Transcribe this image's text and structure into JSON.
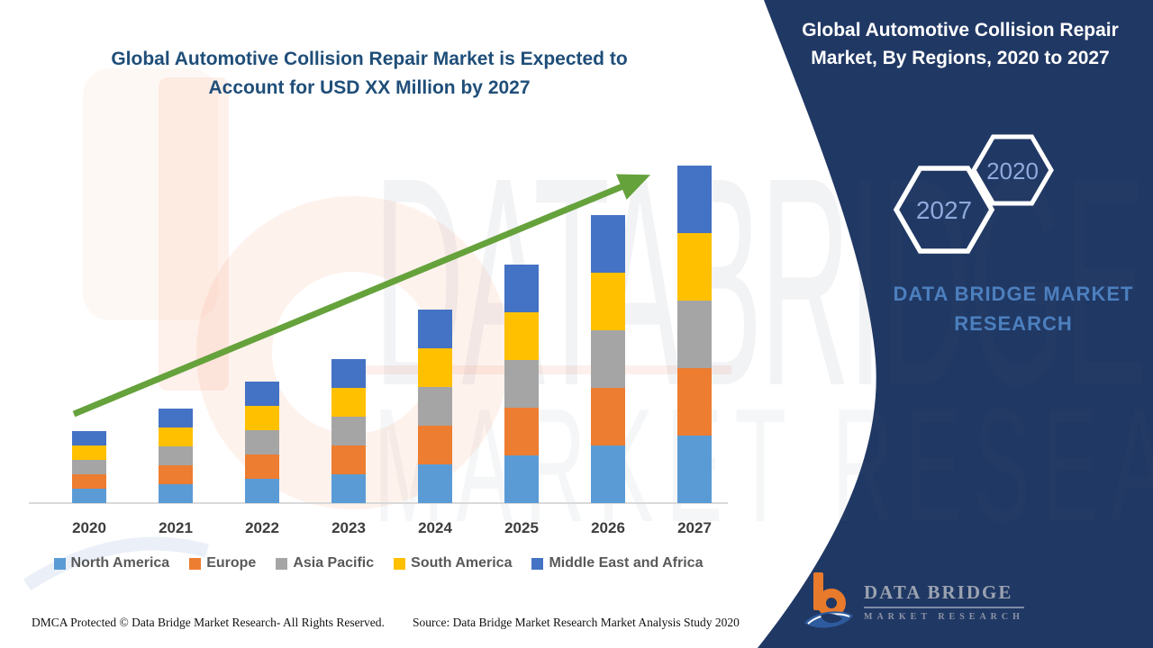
{
  "left_title": {
    "line1": "Global Automotive Collision Repair Market is Expected to",
    "line2": "Account for USD XX Million by 2027"
  },
  "panel": {
    "bg_color": "#203864",
    "title_line1": "Global Automotive Collision Repair",
    "title_line2": "Market, By Regions, 2020 to 2027",
    "hex_front_label": "2027",
    "hex_back_label": "2020",
    "brand_line1": "DATA BRIDGE MARKET",
    "brand_line2": "RESEARCH",
    "brand_color": "#4C7FBE"
  },
  "watermark": {
    "line1": "DATABRIDGE",
    "line2": "MARKET RESEARCH"
  },
  "logo": {
    "name": "DATA BRIDGE",
    "subtitle": "MARKET RESEARCH",
    "orange": "#E87A2B",
    "blue": "#2E5B9E",
    "navy": "#1F3864"
  },
  "footer": {
    "left": "DMCA Protected © Data Bridge Market Research- All Rights Reserved.",
    "right": "Source: Data Bridge Market Research Market Analysis Study 2020"
  },
  "chart_data": {
    "type": "bar",
    "stacked": true,
    "title": "Global Automotive Collision Repair Market, By Regions, 2020 to 2027",
    "xlabel": "",
    "ylabel": "",
    "y_axis_visible": false,
    "grid": false,
    "legend_position": "bottom",
    "value_note": "USD XX Million placeholder; values are relative index units read from bar heights",
    "categories": [
      "2020",
      "2021",
      "2022",
      "2023",
      "2024",
      "2025",
      "2026",
      "2027"
    ],
    "series": [
      {
        "name": "North America",
        "color": "#5B9BD5",
        "values": [
          16,
          21,
          27,
          32,
          43,
          53,
          64,
          75
        ]
      },
      {
        "name": "Europe",
        "color": "#ED7D31",
        "values": [
          16,
          21,
          27,
          32,
          43,
          53,
          64,
          75
        ]
      },
      {
        "name": "Asia Pacific",
        "color": "#A5A5A5",
        "values": [
          16,
          21,
          27,
          32,
          43,
          53,
          64,
          75
        ]
      },
      {
        "name": "South America",
        "color": "#FFC000",
        "values": [
          16,
          21,
          27,
          32,
          43,
          53,
          64,
          75
        ]
      },
      {
        "name": "Middle East and Africa",
        "color": "#4472C4",
        "values": [
          16,
          21,
          27,
          32,
          43,
          53,
          64,
          75
        ]
      }
    ],
    "totals": [
      80,
      105,
      135,
      160,
      215,
      265,
      320,
      375
    ],
    "trend_arrow": {
      "color": "#66A23C",
      "from": [
        82,
        460
      ],
      "to": [
        713,
        198
      ]
    },
    "axis_line_color": "#D9D9D9"
  }
}
